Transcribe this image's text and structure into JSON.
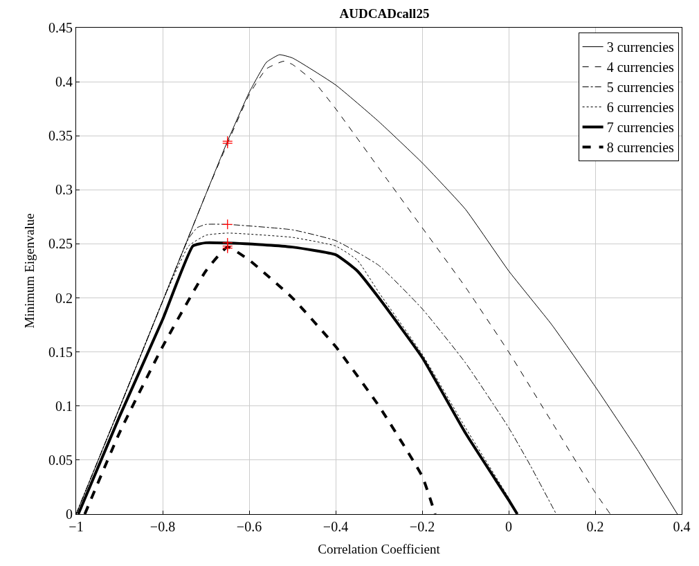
{
  "chart_data": {
    "type": "line",
    "title": "AUDCADcall25",
    "xlabel": "Correlation Coefficient",
    "ylabel": "Minimum Eigenvalue",
    "xlim": [
      -1,
      0.4
    ],
    "xticks": [
      {
        "value": -1,
        "label": "−1"
      },
      {
        "value": -0.8,
        "label": "−0.8"
      },
      {
        "value": -0.6,
        "label": "−0.6"
      },
      {
        "value": -0.4,
        "label": "−0.4"
      },
      {
        "value": -0.2,
        "label": "−0.2"
      },
      0,
      0.2,
      0.4
    ],
    "ylim": [
      0,
      0.45
    ],
    "yticks": [
      0,
      0.05,
      0.1,
      0.15,
      0.2,
      0.25,
      0.3,
      0.35,
      0.4,
      0.45
    ],
    "grid": true,
    "legend": "top right",
    "marker": "none",
    "series": [
      {
        "name": "3 currencies",
        "color": "#000000",
        "line_style": "solid",
        "x": [
          -1,
          -0.9,
          -0.8,
          -0.7,
          -0.65,
          -0.6,
          -0.56,
          -0.53,
          -0.5,
          -0.4,
          -0.3,
          -0.2,
          -0.1,
          0,
          0.1,
          0.2,
          0.3,
          0.39
        ],
        "values": [
          0,
          0.098,
          0.197,
          0.296,
          0.345,
          0.39,
          0.418,
          0.425,
          0.422,
          0.397,
          0.363,
          0.325,
          0.282,
          0.225,
          0.175,
          0.118,
          0.058,
          0
        ]
      },
      {
        "name": "4 currencies",
        "color": "#000000",
        "line_style": "dashed",
        "x": [
          -1,
          -0.9,
          -0.8,
          -0.7,
          -0.65,
          -0.6,
          -0.56,
          -0.52,
          -0.5,
          -0.45,
          -0.4,
          -0.3,
          -0.2,
          -0.1,
          0,
          0.1,
          0.2,
          0.235
        ],
        "values": [
          0,
          0.098,
          0.197,
          0.296,
          0.343,
          0.388,
          0.412,
          0.419,
          0.416,
          0.4,
          0.375,
          0.32,
          0.265,
          0.21,
          0.15,
          0.085,
          0.02,
          0
        ]
      },
      {
        "name": "5 currencies",
        "color": "#000000",
        "line_style": "dashdot",
        "x": [
          -1,
          -0.9,
          -0.8,
          -0.74,
          -0.72,
          -0.7,
          -0.65,
          -0.5,
          -0.4,
          -0.3,
          -0.2,
          -0.1,
          0,
          0.05,
          0.11
        ],
        "values": [
          0,
          0.098,
          0.197,
          0.255,
          0.265,
          0.268,
          0.268,
          0.263,
          0.253,
          0.23,
          0.19,
          0.14,
          0.08,
          0.045,
          0
        ]
      },
      {
        "name": "6 currencies",
        "color": "#000000",
        "line_style": "dotted",
        "x": [
          -1,
          -0.9,
          -0.8,
          -0.74,
          -0.7,
          -0.65,
          -0.6,
          -0.5,
          -0.4,
          -0.35,
          -0.3,
          -0.2,
          -0.1,
          0,
          0.02
        ],
        "values": [
          0,
          0.098,
          0.197,
          0.248,
          0.258,
          0.26,
          0.259,
          0.256,
          0.248,
          0.235,
          0.205,
          0.148,
          0.08,
          0.015,
          0
        ]
      },
      {
        "name": "7 currencies",
        "color": "#000000",
        "line_style": "solid",
        "x": [
          -0.995,
          -0.9,
          -0.8,
          -0.73,
          -0.7,
          -0.6,
          -0.5,
          -0.4,
          -0.35,
          -0.3,
          -0.2,
          -0.1,
          0,
          0.02
        ],
        "values": [
          0,
          0.09,
          0.18,
          0.248,
          0.251,
          0.25,
          0.247,
          0.24,
          0.225,
          0.2,
          0.145,
          0.075,
          0.013,
          0
        ]
      },
      {
        "name": "8 currencies",
        "color": "#000000",
        "line_style": "dashed",
        "x": [
          -0.98,
          -0.9,
          -0.8,
          -0.7,
          -0.65,
          -0.6,
          -0.5,
          -0.4,
          -0.3,
          -0.2,
          -0.17
        ],
        "values": [
          0,
          0.075,
          0.155,
          0.225,
          0.247,
          0.235,
          0.2,
          0.155,
          0.1,
          0.035,
          0
        ]
      },
      {
        "type": "scatter",
        "marker": "cross",
        "color": "#ff0000",
        "x": [
          -0.65,
          -0.65,
          -0.65,
          -0.65,
          -0.65,
          -0.65
        ],
        "values": [
          0.345,
          0.343,
          0.268,
          0.251,
          0.248,
          0.246
        ]
      }
    ]
  }
}
